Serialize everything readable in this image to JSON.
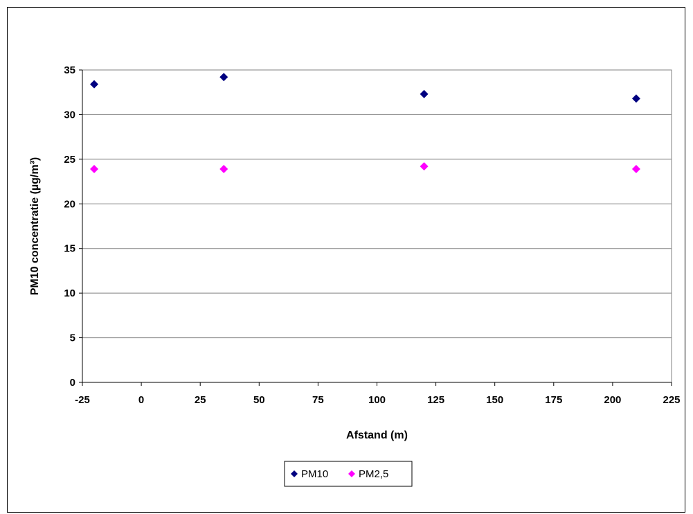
{
  "chart_data": {
    "type": "scatter",
    "xlabel": "Afstand (m)",
    "ylabel": "PM10 concentratie (µg/m³)",
    "xlim": [
      -25,
      225
    ],
    "ylim": [
      0,
      35
    ],
    "x_ticks": [
      -25,
      0,
      25,
      50,
      75,
      100,
      125,
      150,
      175,
      200,
      225
    ],
    "y_ticks": [
      0,
      5,
      10,
      15,
      20,
      25,
      30,
      35
    ],
    "grid": "horizontal",
    "legend_position": "bottom",
    "series": [
      {
        "name": "PM10",
        "color": "#000080",
        "marker": "diamond",
        "points": [
          {
            "x": -20,
            "y": 33.4
          },
          {
            "x": 35,
            "y": 34.2
          },
          {
            "x": 120,
            "y": 32.3
          },
          {
            "x": 210,
            "y": 31.8
          }
        ]
      },
      {
        "name": "PM2,5",
        "color": "#FF00FF",
        "marker": "diamond",
        "points": [
          {
            "x": -20,
            "y": 23.9
          },
          {
            "x": 35,
            "y": 23.9
          },
          {
            "x": 120,
            "y": 24.2
          },
          {
            "x": 210,
            "y": 23.9
          }
        ]
      }
    ]
  }
}
